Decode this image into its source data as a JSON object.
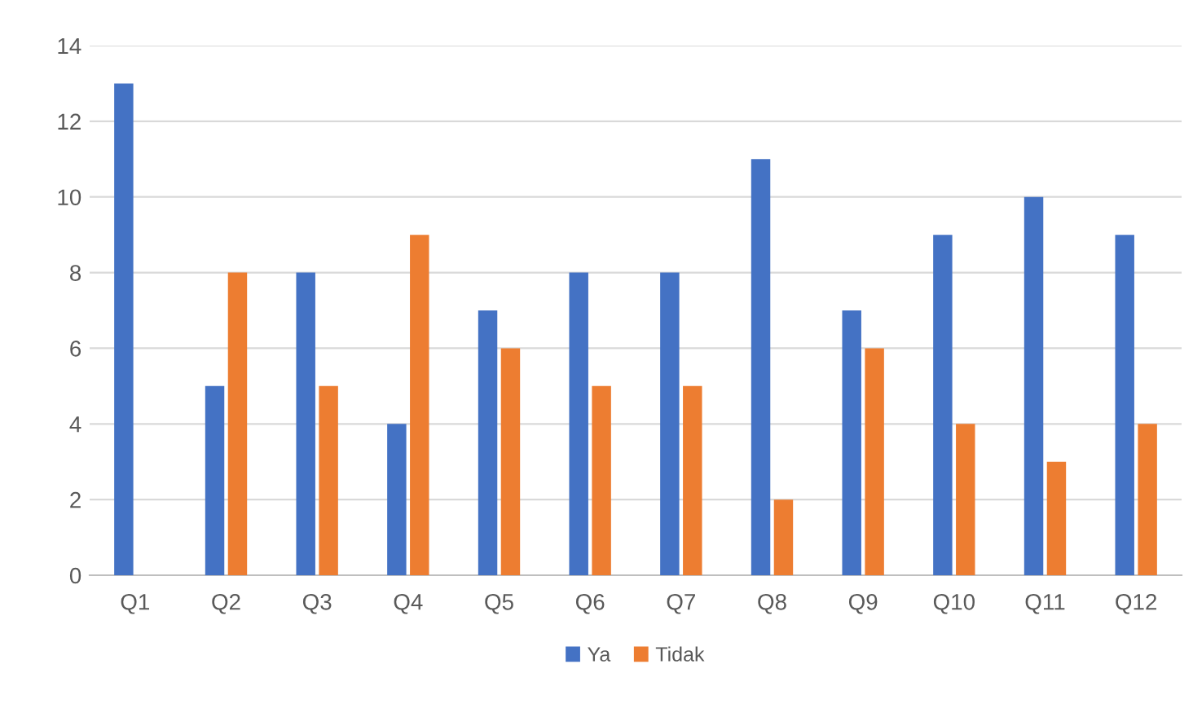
{
  "chart_data": {
    "type": "bar",
    "categories": [
      "Q1",
      "Q2",
      "Q3",
      "Q4",
      "Q5",
      "Q6",
      "Q7",
      "Q8",
      "Q9",
      "Q10",
      "Q11",
      "Q12"
    ],
    "series": [
      {
        "name": "Ya",
        "color": "#4472c4",
        "values": [
          13,
          5,
          8,
          4,
          7,
          8,
          8,
          11,
          7,
          9,
          10,
          9
        ]
      },
      {
        "name": "Tidak",
        "color": "#ed7d31",
        "values": [
          0,
          8,
          5,
          9,
          6,
          5,
          5,
          2,
          6,
          4,
          3,
          4
        ]
      }
    ],
    "ylim": [
      0,
      14
    ],
    "yticks": [
      0,
      2,
      4,
      6,
      8,
      10,
      12,
      14
    ],
    "grid": "y",
    "legend": "bottom"
  }
}
